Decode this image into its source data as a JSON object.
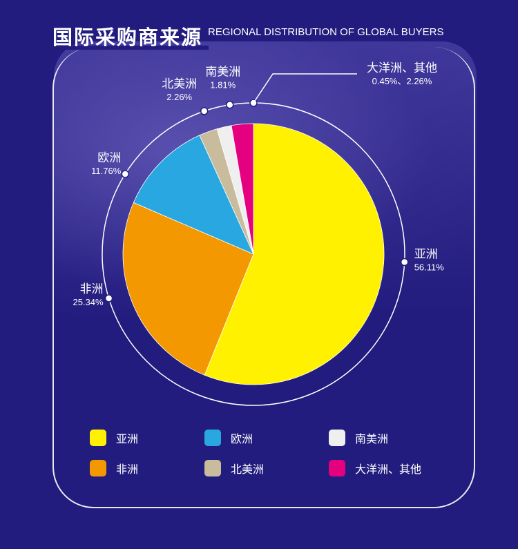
{
  "header": {
    "title_cn": "国际采购商来源",
    "title_en": "REGIONAL DISTRIBUTION OF GLOBAL BUYERS"
  },
  "chart_data": {
    "type": "pie",
    "title": "国际采购商来源",
    "subtitle": "REGIONAL DISTRIBUTION OF GLOBAL BUYERS",
    "legend_position": "bottom",
    "slices": [
      {
        "name": "亚洲",
        "value": 56.11,
        "label": "56.11%",
        "color": "#fff100"
      },
      {
        "name": "非洲",
        "value": 25.34,
        "label": "25.34%",
        "color": "#f39800"
      },
      {
        "name": "欧洲",
        "value": 11.76,
        "label": "11.76%",
        "color": "#29a7e1"
      },
      {
        "name": "北美洲",
        "value": 2.26,
        "label": "2.26%",
        "color": "#c9bc9c"
      },
      {
        "name": "南美洲",
        "value": 1.81,
        "label": "1.81%",
        "color": "#efefef"
      },
      {
        "name": "大洋洲、其他",
        "value": 2.71,
        "label": "0.45%、2.26%",
        "color": "#e4007f"
      }
    ]
  },
  "legend": {
    "items": [
      {
        "label": "亚洲",
        "color": "#fff100"
      },
      {
        "label": "欧洲",
        "color": "#29a7e1"
      },
      {
        "label": "南美洲",
        "color": "#efefef"
      },
      {
        "label": "非洲",
        "color": "#f39800"
      },
      {
        "label": "北美洲",
        "color": "#c9bc9c"
      },
      {
        "label": "大洋洲、其他",
        "color": "#e4007f"
      }
    ]
  }
}
